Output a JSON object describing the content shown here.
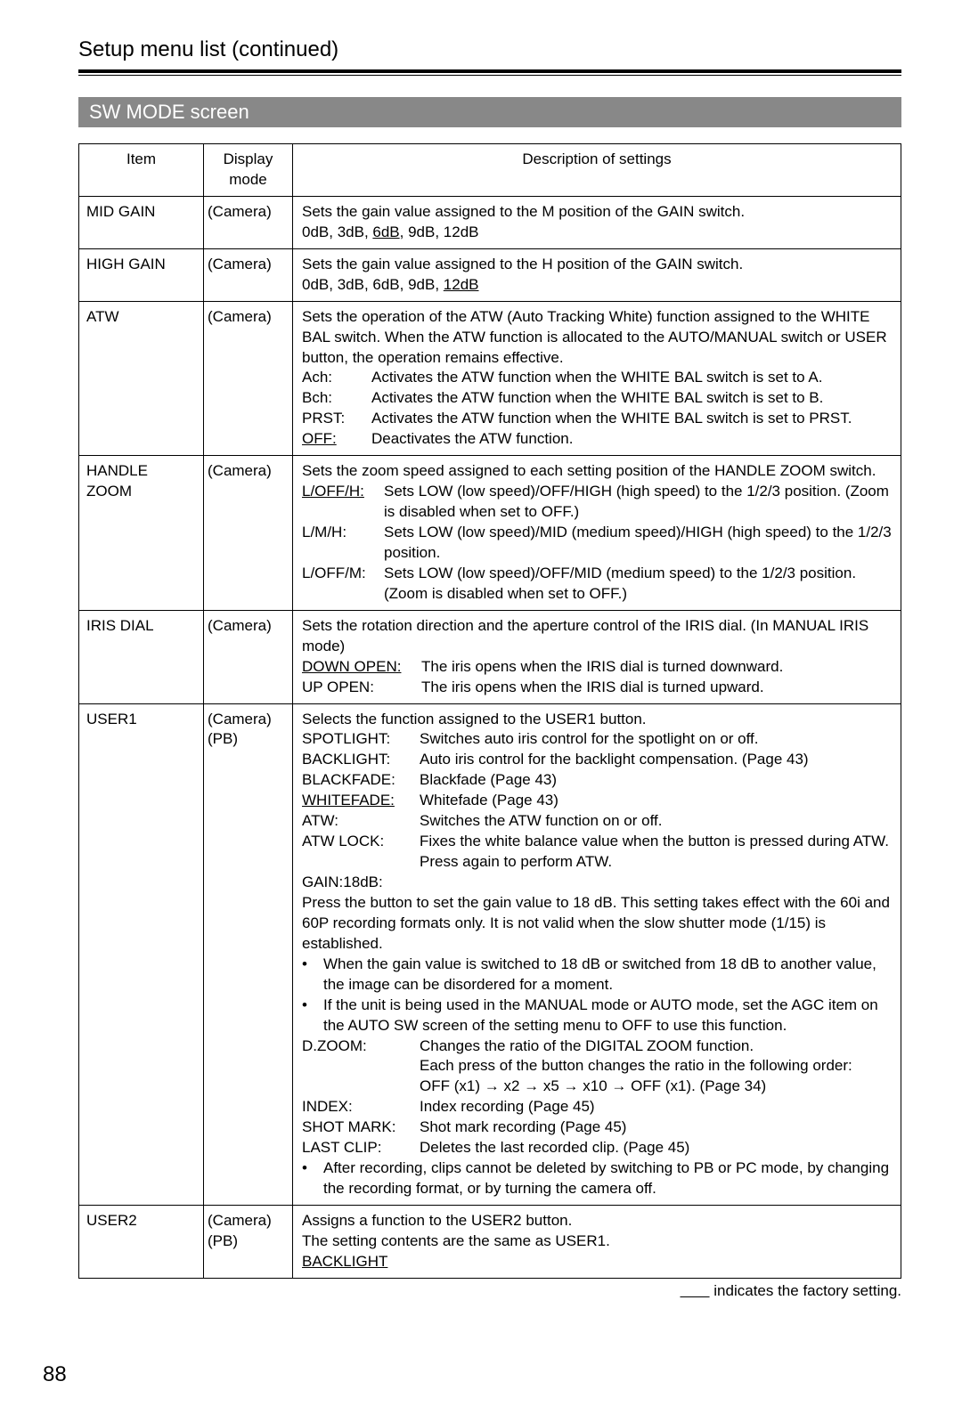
{
  "page": {
    "title": "Setup menu list (continued)",
    "section_bar": "SW MODE screen",
    "footer_note_blank": "       ",
    "footer_note_text": " indicates the factory setting.",
    "page_number": "88"
  },
  "table": {
    "head": {
      "item": "Item",
      "mode": "Display mode",
      "desc": "Description of settings"
    },
    "rows": [
      {
        "item": "MID GAIN",
        "mode": "(Camera)",
        "desc": [
          {
            "t": "plain",
            "v": "Sets the gain value assigned to the M position of the GAIN switch."
          },
          {
            "t": "mixed",
            "parts": [
              {
                "v": "0dB, 3dB, "
              },
              {
                "v": "6dB",
                "u": true
              },
              {
                "v": ", 9dB, 12dB"
              }
            ]
          }
        ]
      },
      {
        "item": "HIGH GAIN",
        "mode": "(Camera)",
        "desc": [
          {
            "t": "plain",
            "v": "Sets the gain value assigned to the H position of the GAIN switch."
          },
          {
            "t": "mixed",
            "parts": [
              {
                "v": "0dB, 3dB, 6dB, 9dB, "
              },
              {
                "v": "12dB",
                "u": true
              }
            ]
          }
        ]
      },
      {
        "item": "ATW",
        "mode": "(Camera)",
        "desc": [
          {
            "t": "plain",
            "v": "Sets the operation of the ATW (Auto Tracking White) function assigned to the WHITE BAL switch. When the ATW function is allocated to the AUTO/MANUAL switch or USER button, the operation remains effective."
          },
          {
            "t": "kv",
            "k": "Ach:",
            "kw": 72,
            "v": "Activates the ATW function when the WHITE BAL switch is set to A."
          },
          {
            "t": "kv",
            "k": "Bch:",
            "kw": 72,
            "v": "Activates the ATW function when the WHITE BAL switch is set to B."
          },
          {
            "t": "kv",
            "k": "PRST:",
            "kw": 72,
            "v": "Activates the ATW function when the WHITE BAL switch is set to PRST."
          },
          {
            "t": "kv",
            "k": "OFF:",
            "ku": true,
            "kw": 72,
            "v": "Deactivates the ATW function."
          }
        ]
      },
      {
        "item": "HANDLE ZOOM",
        "mode": "(Camera)",
        "desc": [
          {
            "t": "plain",
            "v": "Sets the zoom speed assigned to each setting position of the HANDLE ZOOM switch."
          },
          {
            "t": "kv",
            "k": "L/OFF/H:",
            "ku": true,
            "kw": 86,
            "v": "Sets LOW (low speed)/OFF/HIGH (high speed) to the 1/2/3 position. (Zoom is disabled when set to OFF.)"
          },
          {
            "t": "kv",
            "k": "L/M/H:",
            "kw": 86,
            "v": "Sets LOW (low speed)/MID (medium speed)/HIGH (high speed) to the 1/2/3 position."
          },
          {
            "t": "kv",
            "k": "L/OFF/M:",
            "kw": 86,
            "v": "Sets LOW (low speed)/OFF/MID (medium speed) to the 1/2/3 position. (Zoom is disabled when set to OFF.)"
          }
        ]
      },
      {
        "item": "IRIS DIAL",
        "mode": "(Camera)",
        "desc": [
          {
            "t": "plain",
            "v": "Sets the rotation direction and the aperture control of the IRIS dial. (In MANUAL IRIS mode)"
          },
          {
            "t": "kv",
            "k": "DOWN OPEN:",
            "ku": true,
            "kw": 128,
            "v": "The iris opens when the IRIS dial is turned downward."
          },
          {
            "t": "kv",
            "k": "UP OPEN:",
            "kw": 128,
            "v": "The iris opens when the IRIS dial is turned upward."
          }
        ]
      },
      {
        "item": "USER1",
        "mode": "(Camera) (PB)",
        "desc": [
          {
            "t": "plain",
            "v": "Selects the function assigned to the USER1 button."
          },
          {
            "t": "kv",
            "k": "SPOTLIGHT:",
            "kw": 126,
            "v": "Switches auto iris control for the spotlight on or off."
          },
          {
            "t": "kv",
            "k": "BACKLIGHT:",
            "kw": 126,
            "v": "Auto iris control for the backlight compensation. (Page 43)"
          },
          {
            "t": "kv",
            "k": "BLACKFADE:",
            "kw": 126,
            "v": "Blackfade (Page 43)"
          },
          {
            "t": "kv",
            "k": "WHITEFADE:",
            "ku": true,
            "kw": 126,
            "v": "Whitefade (Page 43)"
          },
          {
            "t": "kv",
            "k": "ATW:",
            "kw": 126,
            "v": "Switches the ATW function on or off."
          },
          {
            "t": "kv",
            "k": "ATW LOCK:",
            "kw": 126,
            "v": "Fixes the white balance value when the button is pressed during ATW. Press again to perform ATW."
          },
          {
            "t": "plain",
            "v": "GAIN:18dB:"
          },
          {
            "t": "plain",
            "v": "Press the button to set the gain value to 18 dB. This setting takes effect with the 60i and 60P recording formats only. It is not valid when the slow shutter mode (1/15) is established."
          },
          {
            "t": "kv",
            "k": "•",
            "kw": 18,
            "v": "When the gain value is switched to 18 dB or switched from 18 dB to another value, the image can be disordered for a moment."
          },
          {
            "t": "kv",
            "k": "•",
            "kw": 18,
            "v": "If the unit is being used in the MANUAL mode or AUTO mode, set the AGC item on the AUTO SW screen of the setting menu to OFF to use this function."
          },
          {
            "t": "kv",
            "k": "D.ZOOM:",
            "kw": 126,
            "v": "Changes the ratio of the DIGITAL ZOOM function."
          },
          {
            "t": "kv",
            "k": "",
            "kw": 126,
            "v": "Each press of the button changes the ratio in the following order:"
          },
          {
            "t": "kv",
            "k": "",
            "kw": 126,
            "v": "OFF (x1) → x2 → x5 → x10 → OFF (x1). (Page 34)"
          },
          {
            "t": "kv",
            "k": "INDEX:",
            "kw": 126,
            "v": "Index recording (Page 45)"
          },
          {
            "t": "kv",
            "k": "SHOT MARK:",
            "kw": 126,
            "v": "Shot mark recording (Page 45)"
          },
          {
            "t": "kv",
            "k": "LAST CLIP:",
            "kw": 126,
            "v": "Deletes the last recorded clip. (Page 45)"
          },
          {
            "t": "kv",
            "k": "•",
            "kw": 18,
            "v": "After recording, clips cannot be deleted by switching to PB or PC mode, by changing the recording format, or by turning the camera off."
          }
        ]
      },
      {
        "item": "USER2",
        "mode": "(Camera) (PB)",
        "desc": [
          {
            "t": "plain",
            "v": "Assigns a function to the USER2 button."
          },
          {
            "t": "plain",
            "v": "The setting contents are the same as USER1."
          },
          {
            "t": "mixed",
            "parts": [
              {
                "v": "BACKLIGHT",
                "u": true
              }
            ]
          }
        ]
      }
    ]
  }
}
